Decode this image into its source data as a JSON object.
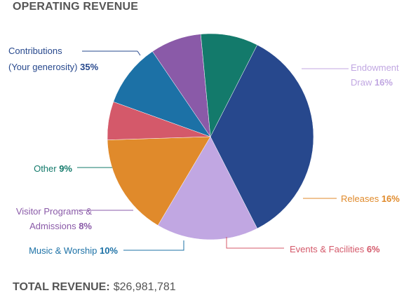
{
  "chart_data": {
    "type": "pie",
    "title": "OPERATING REVENUE",
    "slices": [
      {
        "label_lines": [
          "Contributions",
          "(Your generosity)"
        ],
        "percent": 35,
        "percent_text": "35%",
        "color": "#27488d"
      },
      {
        "label_lines": [
          "Endowment",
          "Draw"
        ],
        "percent": 16,
        "percent_text": "16%",
        "color": "#c1a7e2"
      },
      {
        "label_lines": [
          "Releases"
        ],
        "percent": 16,
        "percent_text": "16%",
        "color": "#e08a2b"
      },
      {
        "label_lines": [
          "Events & Facilities"
        ],
        "percent": 6,
        "percent_text": "6%",
        "color": "#d4596a"
      },
      {
        "label_lines": [
          "Music & Worship"
        ],
        "percent": 10,
        "percent_text": "10%",
        "color": "#1c71a6"
      },
      {
        "label_lines": [
          "Visitor Programs &",
          "Admissions"
        ],
        "percent": 8,
        "percent_text": "8%",
        "color": "#8a5aa8"
      },
      {
        "label_lines": [
          "Other"
        ],
        "percent": 9,
        "percent_text": "9%",
        "color": "#137a6b"
      }
    ],
    "total_label": "TOTAL REVENUE:",
    "total_value": "$26,981,781"
  }
}
